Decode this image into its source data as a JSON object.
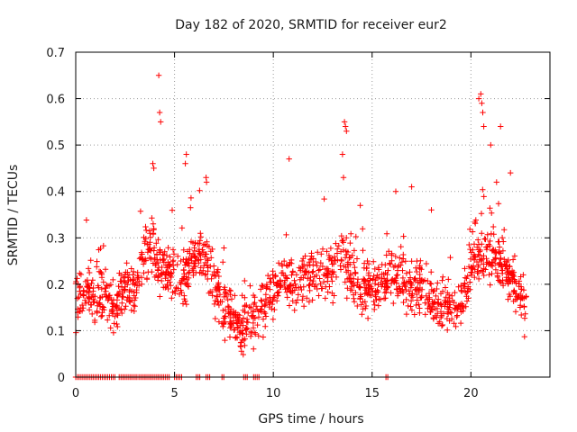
{
  "chart_data": {
    "type": "scatter",
    "title": "Day 182 of 2020, SRMTID for receiver eur2",
    "xlabel": "GPS time / hours",
    "ylabel": "SRMTID / TECUs",
    "xlim": [
      0,
      24
    ],
    "ylim": [
      0,
      0.7
    ],
    "grid": true,
    "marker": "+",
    "color": "#ff0000",
    "x_ticks": [
      "0",
      "5",
      "10",
      "15",
      "20"
    ],
    "x_tick_values": [
      0,
      5,
      10,
      15,
      20
    ],
    "y_ticks": [
      "0",
      "0.1",
      "0.2",
      "0.3",
      "0.4",
      "0.5",
      "0.6",
      "0.7"
    ],
    "y_tick_values": [
      0,
      0.1,
      0.2,
      0.3,
      0.4,
      0.5,
      0.6,
      0.7
    ],
    "series": [
      {
        "name": "SRMTID",
        "trend_x": [
          0.0,
          0.5,
          1.0,
          1.5,
          2.0,
          2.5,
          3.0,
          3.5,
          4.0,
          4.5,
          5.0,
          5.5,
          6.0,
          6.5,
          7.0,
          7.5,
          8.0,
          8.5,
          9.0,
          9.5,
          10.0,
          10.5,
          11.0,
          11.5,
          12.0,
          12.5,
          13.0,
          13.5,
          14.0,
          14.5,
          15.0,
          15.5,
          16.0,
          16.5,
          17.0,
          17.5,
          18.0,
          18.5,
          19.0,
          19.5,
          20.0,
          20.5,
          21.0,
          21.5,
          22.0,
          22.5,
          22.8
        ],
        "trend_y": [
          0.17,
          0.19,
          0.16,
          0.18,
          0.14,
          0.2,
          0.18,
          0.28,
          0.26,
          0.24,
          0.22,
          0.21,
          0.26,
          0.27,
          0.2,
          0.15,
          0.11,
          0.11,
          0.12,
          0.16,
          0.19,
          0.21,
          0.2,
          0.21,
          0.23,
          0.22,
          0.22,
          0.26,
          0.21,
          0.19,
          0.19,
          0.2,
          0.22,
          0.2,
          0.19,
          0.19,
          0.17,
          0.15,
          0.14,
          0.16,
          0.22,
          0.27,
          0.27,
          0.25,
          0.21,
          0.17,
          0.15
        ],
        "spread": 0.06,
        "count": 1500,
        "outliers_x": [
          4.2,
          4.25,
          4.3,
          3.9,
          3.95,
          5.6,
          5.55,
          6.6,
          6.62,
          10.8,
          13.6,
          13.65,
          13.7,
          13.5,
          13.55,
          20.4,
          20.5,
          20.55,
          20.6,
          20.65,
          21.0,
          21.5,
          21.3,
          22.0,
          16.2,
          17.0,
          18.0,
          14.4
        ],
        "outliers_y": [
          0.65,
          0.57,
          0.55,
          0.46,
          0.45,
          0.48,
          0.46,
          0.43,
          0.42,
          0.47,
          0.55,
          0.54,
          0.53,
          0.48,
          0.43,
          0.6,
          0.61,
          0.59,
          0.57,
          0.54,
          0.5,
          0.54,
          0.42,
          0.44,
          0.4,
          0.41,
          0.36,
          0.37
        ],
        "zero_intervals": [
          [
            0.0,
            2.0
          ],
          [
            2.2,
            3.1
          ],
          [
            3.2,
            4.8
          ],
          [
            5.0,
            5.4
          ],
          [
            6.1,
            6.3
          ],
          [
            6.6,
            6.8
          ],
          [
            7.4,
            7.5
          ],
          [
            8.5,
            8.7
          ],
          [
            9.0,
            9.3
          ],
          [
            15.7,
            15.8
          ]
        ],
        "zero_step": 0.09
      }
    ]
  }
}
